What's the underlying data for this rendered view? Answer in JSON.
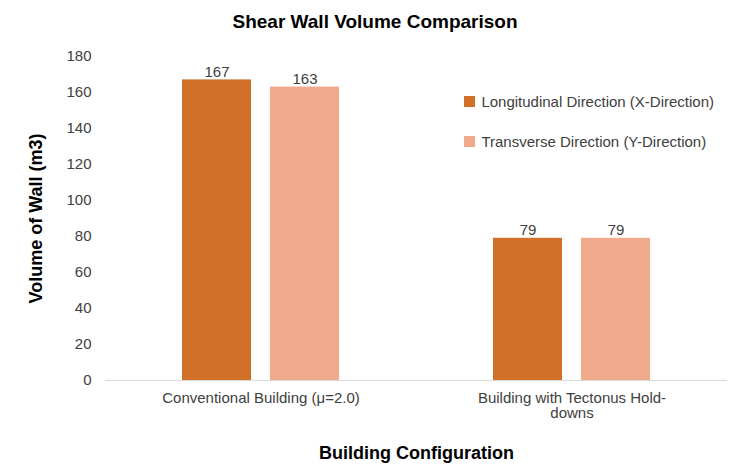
{
  "chart_data": {
    "type": "bar",
    "title": "Shear Wall Volume Comparison",
    "x_label": "Building Configuration",
    "y_label": "Volume of Wall (m3)",
    "categories": [
      "Conventional Building (μ=2.0)",
      "Building with Tectonus Hold-downs"
    ],
    "series": [
      {
        "name": "Longitudinal Direction (X-Direction)",
        "color": "#d2702a",
        "values": [
          167,
          79
        ]
      },
      {
        "name": "Transverse Direction (Y-Direction)",
        "color": "#f0a98a",
        "values": [
          163,
          79
        ]
      }
    ],
    "ylim": [
      0,
      180
    ],
    "yticks": [
      0,
      20,
      40,
      60,
      80,
      100,
      120,
      140,
      160,
      180
    ],
    "grid": false,
    "legend": "top right",
    "data_labels": true
  }
}
